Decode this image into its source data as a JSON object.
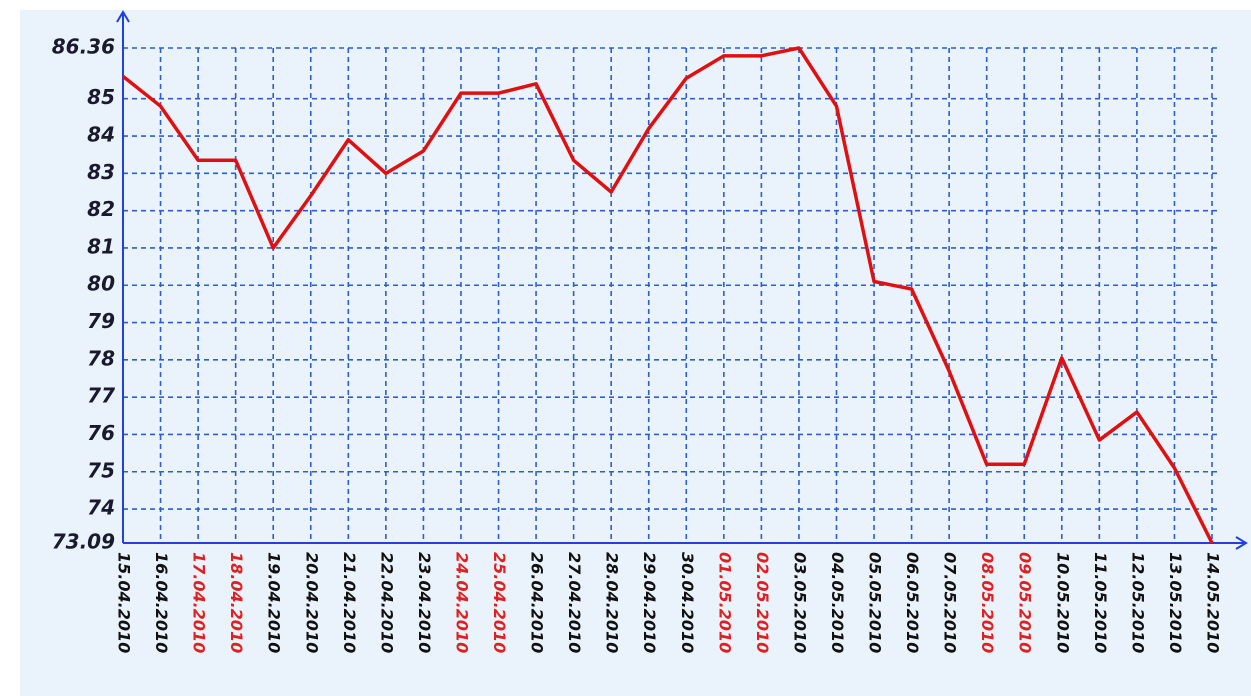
{
  "chart_data": {
    "type": "line",
    "categories": [
      "15.04.2010",
      "16.04.2010",
      "17.04.2010",
      "18.04.2010",
      "19.04.2010",
      "20.04.2010",
      "21.04.2010",
      "22.04.2010",
      "23.04.2010",
      "24.04.2010",
      "25.04.2010",
      "26.04.2010",
      "27.04.2010",
      "28.04.2010",
      "29.04.2010",
      "30.04.2010",
      "01.05.2010",
      "02.05.2010",
      "03.05.2010",
      "04.05.2010",
      "05.05.2010",
      "06.05.2010",
      "07.05.2010",
      "08.05.2010",
      "09.05.2010",
      "10.05.2010",
      "11.05.2010",
      "12.05.2010",
      "13.05.2010",
      "14.05.2010"
    ],
    "category_colors": [
      "#111111",
      "#111111",
      "#e02020",
      "#e02020",
      "#111111",
      "#111111",
      "#111111",
      "#111111",
      "#111111",
      "#e02020",
      "#e02020",
      "#111111",
      "#111111",
      "#111111",
      "#111111",
      "#111111",
      "#e02020",
      "#e02020",
      "#111111",
      "#111111",
      "#111111",
      "#111111",
      "#111111",
      "#e02020",
      "#e02020",
      "#111111",
      "#111111",
      "#111111",
      "#111111",
      "#111111"
    ],
    "series": [
      {
        "color": "#e01010",
        "values": [
          85.6,
          84.8,
          83.35,
          83.35,
          81.0,
          82.4,
          83.9,
          83.0,
          83.6,
          85.15,
          85.15,
          85.4,
          83.35,
          82.5,
          84.2,
          85.55,
          86.15,
          86.15,
          86.36,
          84.8,
          80.1,
          79.9,
          77.7,
          75.2,
          75.2,
          78.05,
          75.85,
          76.6,
          75.1,
          73.09
        ]
      }
    ],
    "ylim": [
      73.09,
      86.36
    ],
    "yticks": [
      73.09,
      74,
      75,
      76,
      77,
      78,
      79,
      80,
      81,
      82,
      83,
      84,
      85,
      86.36
    ],
    "grid": true
  }
}
